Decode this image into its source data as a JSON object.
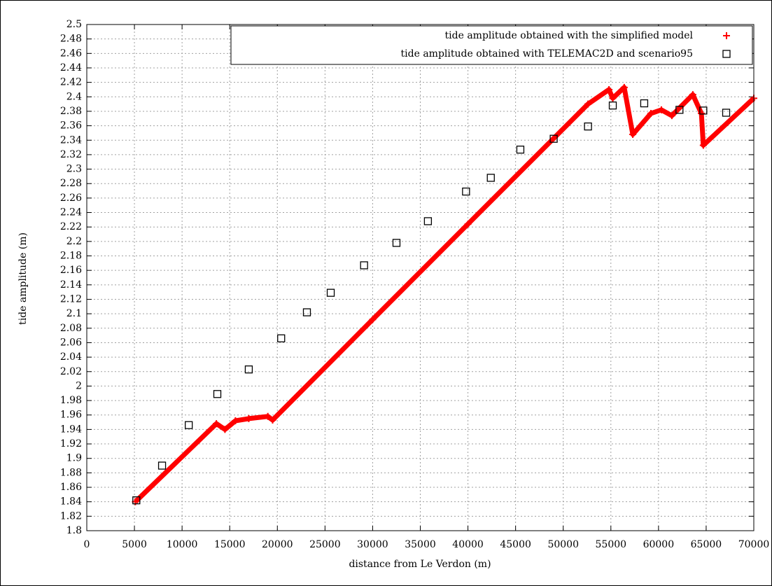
{
  "chart_data": {
    "type": "scatter",
    "xlabel": "distance from Le Verdon (m)",
    "ylabel": "tide amplitude (m)",
    "xlim": [
      0,
      70000
    ],
    "xticks": [
      0,
      5000,
      10000,
      15000,
      20000,
      25000,
      30000,
      35000,
      40000,
      45000,
      50000,
      55000,
      60000,
      65000,
      70000
    ],
    "ylim": [
      1.8,
      2.5
    ],
    "yticks": [
      1.8,
      1.82,
      1.84,
      1.86,
      1.88,
      1.9,
      1.92,
      1.94,
      1.96,
      1.98,
      2,
      2.02,
      2.04,
      2.06,
      2.08,
      2.1,
      2.12,
      2.14,
      2.16,
      2.18,
      2.2,
      2.22,
      2.24,
      2.26,
      2.28,
      2.3,
      2.32,
      2.34,
      2.36,
      2.38,
      2.4,
      2.42,
      2.44,
      2.46,
      2.48,
      2.5
    ],
    "grid": true,
    "legend": "top-right",
    "series": [
      {
        "name": "tide amplitude obtained with the simplified model",
        "color": "#ff0000",
        "marker": "plus",
        "x": [
          5100,
          13600,
          14500,
          15600,
          17000,
          19000,
          19500,
          30000,
          40000,
          52600,
          54800,
          55200,
          56400,
          57300,
          59200,
          60300,
          61400,
          63600,
          64500,
          64700,
          70000
        ],
        "values": [
          1.84,
          1.948,
          1.94,
          1.952,
          1.955,
          1.958,
          1.953,
          2.092,
          2.224,
          2.39,
          2.41,
          2.398,
          2.413,
          2.348,
          2.377,
          2.382,
          2.374,
          2.403,
          2.377,
          2.333,
          2.398
        ]
      },
      {
        "name": "tide amplitude obtained with TELEMAC2D and scenario95",
        "color": "#000000",
        "marker": "square",
        "x": [
          5200,
          7900,
          10700,
          13700,
          17000,
          20400,
          23100,
          25600,
          29100,
          32500,
          35800,
          39800,
          42400,
          45500,
          49000,
          52600,
          55200,
          58500,
          62200,
          64700,
          67100
        ],
        "values": [
          1.842,
          1.89,
          1.946,
          1.989,
          2.023,
          2.066,
          2.102,
          2.129,
          2.167,
          2.198,
          2.228,
          2.269,
          2.288,
          2.327,
          2.342,
          2.359,
          2.388,
          2.391,
          2.382,
          2.381,
          2.378
        ]
      }
    ]
  }
}
